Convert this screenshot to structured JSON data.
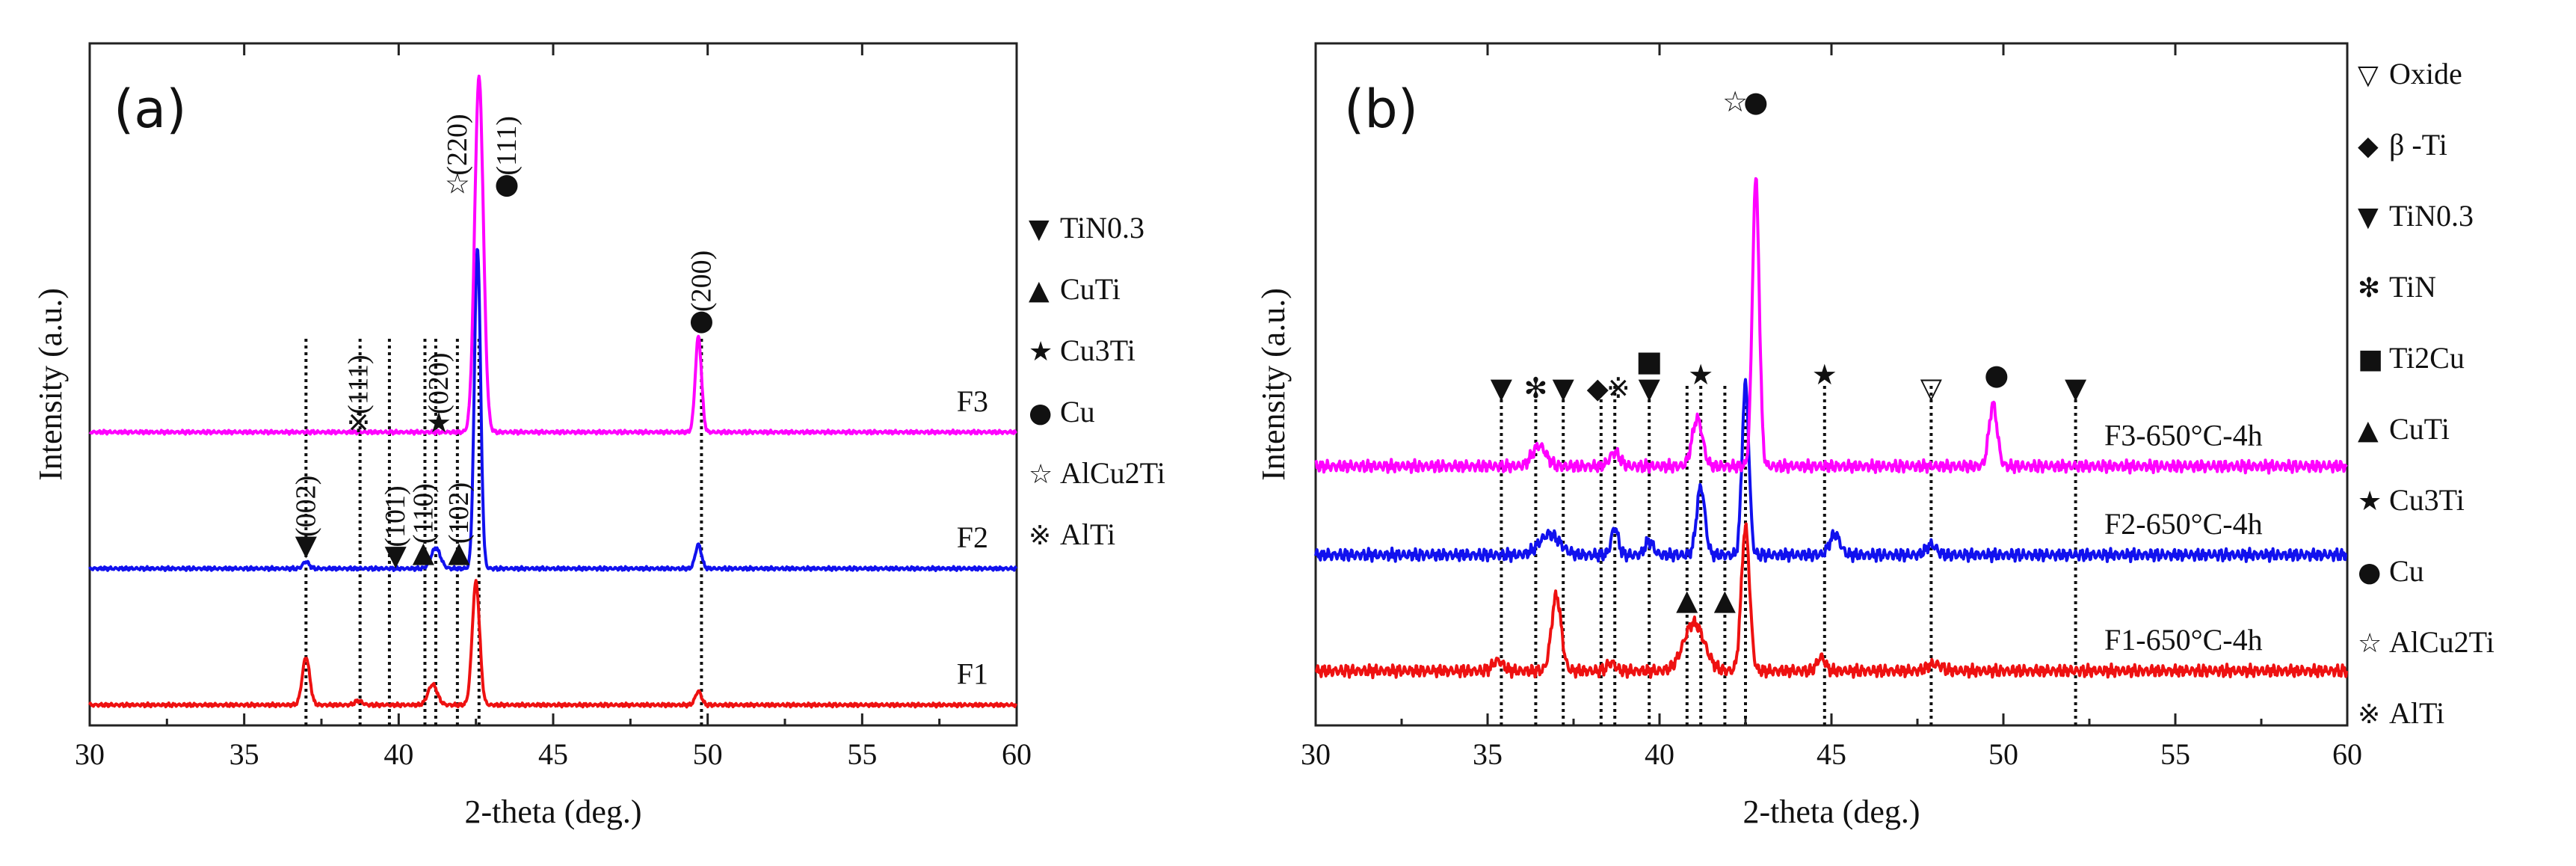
{
  "figure": {
    "panels": [
      "(a)",
      "(b)"
    ]
  },
  "chart_data": [
    {
      "type": "line",
      "panel": "(a)",
      "title": "",
      "xlabel": "2-theta (deg.)",
      "ylabel": "Intensity (a.u.)",
      "xlim": [
        30,
        60
      ],
      "xticks": [
        30,
        35,
        40,
        45,
        50,
        55,
        60
      ],
      "ylim": [
        0,
        100
      ],
      "series": [
        {
          "name": "F1",
          "color": "#ee1111",
          "baseline": 3,
          "peaks": [
            [
              37.0,
              7,
              0.12
            ],
            [
              38.7,
              0.6,
              0.12
            ],
            [
              41.1,
              3,
              0.15
            ],
            [
              42.5,
              18,
              0.12
            ],
            [
              49.7,
              2,
              0.1
            ]
          ]
        },
        {
          "name": "F2",
          "color": "#1111ee",
          "baseline": 23,
          "peaks": [
            [
              37.0,
              1,
              0.1
            ],
            [
              41.2,
              3,
              0.15
            ],
            [
              42.55,
              47,
              0.1
            ],
            [
              49.7,
              3.5,
              0.1
            ]
          ]
        },
        {
          "name": "F3",
          "color": "#ff00ff",
          "baseline": 43,
          "peaks": [
            [
              42.6,
              52,
              0.14
            ],
            [
              49.7,
              14,
              0.1
            ]
          ]
        }
      ],
      "vlines": [
        37.0,
        38.75,
        39.7,
        40.85,
        41.2,
        41.9,
        42.6,
        49.8
      ],
      "peak_labels": [
        {
          "x": 37.0,
          "y": 25,
          "symbol": "▼",
          "text": "(002)"
        },
        {
          "x": 38.7,
          "y": 43,
          "symbol": "※",
          "text": "(111)"
        },
        {
          "x": 39.9,
          "y": 23.5,
          "symbol": "▼",
          "text": "(101)"
        },
        {
          "x": 40.8,
          "y": 24,
          "symbol": "▲",
          "text": "(110)"
        },
        {
          "x": 41.3,
          "y": 43,
          "symbol": "★",
          "text": "(020)"
        },
        {
          "x": 41.95,
          "y": 24,
          "symbol": "▲",
          "text": "(102)"
        },
        {
          "x": 41.9,
          "y": 78,
          "symbol": "☆",
          "text": "(220)"
        },
        {
          "x": 43.5,
          "y": 78,
          "symbol": "●",
          "text": "(111)"
        },
        {
          "x": 49.8,
          "y": 58,
          "symbol": "●",
          "text": "(200)"
        }
      ],
      "legend": [
        {
          "symbol": "▼",
          "text": "TiN0.3"
        },
        {
          "symbol": "▲",
          "text": "CuTi"
        },
        {
          "symbol": "★",
          "text": "Cu3Ti"
        },
        {
          "symbol": "●",
          "text": "Cu"
        },
        {
          "symbol": "☆",
          "text": "AlCu2Ti"
        },
        {
          "symbol": "※",
          "text": "AlTi"
        }
      ]
    },
    {
      "type": "line",
      "panel": "(b)",
      "title": "",
      "xlabel": "2-theta (deg.)",
      "ylabel": "Intensity (a.u.)",
      "xlim": [
        30,
        60
      ],
      "xticks": [
        30,
        35,
        40,
        45,
        50,
        55,
        60
      ],
      "ylim": [
        0,
        100
      ],
      "series": [
        {
          "name": "F1-650°C-4h",
          "color": "#ee1111",
          "baseline": 8,
          "peaks": [
            [
              35.3,
              1.5,
              0.15
            ],
            [
              37.0,
              11,
              0.14
            ],
            [
              38.6,
              1.2,
              0.12
            ],
            [
              41.0,
              7,
              0.3
            ],
            [
              42.5,
              21,
              0.12
            ],
            [
              44.7,
              2,
              0.12
            ],
            [
              48.0,
              1,
              0.2
            ]
          ]
        },
        {
          "name": "F2-650°C-4h",
          "color": "#1111ee",
          "baseline": 25,
          "peaks": [
            [
              36.8,
              3,
              0.3
            ],
            [
              38.7,
              4,
              0.1
            ],
            [
              39.7,
              2,
              0.12
            ],
            [
              41.2,
              10,
              0.12
            ],
            [
              42.5,
              25,
              0.1
            ],
            [
              45.1,
              3,
              0.15
            ],
            [
              47.9,
              1.5,
              0.15
            ]
          ]
        },
        {
          "name": "F3-650°C-4h",
          "color": "#ff00ff",
          "baseline": 38,
          "peaks": [
            [
              36.5,
              3,
              0.2
            ],
            [
              38.7,
              2,
              0.15
            ],
            [
              41.1,
              7,
              0.15
            ],
            [
              42.8,
              42,
              0.1
            ],
            [
              49.7,
              9,
              0.12
            ]
          ]
        }
      ],
      "vlines": [
        35.4,
        36.4,
        37.2,
        38.3,
        38.7,
        39.7,
        40.8,
        41.2,
        41.9,
        42.5,
        44.8,
        47.9,
        52.1
      ],
      "peak_labels": [
        {
          "x": 35.4,
          "y": 48,
          "symbol": "▼",
          "text": ""
        },
        {
          "x": 36.4,
          "y": 48,
          "symbol": "✻",
          "text": ""
        },
        {
          "x": 37.2,
          "y": 48,
          "symbol": "▼",
          "text": ""
        },
        {
          "x": 38.2,
          "y": 48,
          "symbol": "◆",
          "text": ""
        },
        {
          "x": 38.8,
          "y": 48,
          "symbol": "※",
          "text": ""
        },
        {
          "x": 39.7,
          "y": 52,
          "symbol": "■",
          "text": ""
        },
        {
          "x": 39.7,
          "y": 48,
          "symbol": "▼",
          "text": ""
        },
        {
          "x": 41.2,
          "y": 50,
          "symbol": "★",
          "text": ""
        },
        {
          "x": 44.8,
          "y": 50,
          "symbol": "★",
          "text": ""
        },
        {
          "x": 47.9,
          "y": 48,
          "symbol": "▽",
          "text": ""
        },
        {
          "x": 49.8,
          "y": 50,
          "symbol": "●",
          "text": ""
        },
        {
          "x": 52.1,
          "y": 48,
          "symbol": "▼",
          "text": ""
        },
        {
          "x": 40.8,
          "y": 17,
          "symbol": "▲",
          "text": ""
        },
        {
          "x": 41.9,
          "y": 17,
          "symbol": "▲",
          "text": ""
        },
        {
          "x": 42.2,
          "y": 90,
          "symbol": "☆",
          "text": ""
        },
        {
          "x": 42.8,
          "y": 90,
          "symbol": "●",
          "text": ""
        }
      ],
      "legend": [
        {
          "symbol": "▽",
          "text": "Oxide"
        },
        {
          "symbol": "◆",
          "text": "β -Ti"
        },
        {
          "symbol": "▼",
          "text": "TiN0.3"
        },
        {
          "symbol": "✻",
          "text": "TiN"
        },
        {
          "symbol": "■",
          "text": "Ti2Cu"
        },
        {
          "symbol": "▲",
          "text": "CuTi"
        },
        {
          "symbol": "★",
          "text": "Cu3Ti"
        },
        {
          "symbol": "●",
          "text": "Cu"
        },
        {
          "symbol": "☆",
          "text": "AlCu2Ti"
        },
        {
          "symbol": "※",
          "text": "AlTi"
        }
      ]
    }
  ]
}
